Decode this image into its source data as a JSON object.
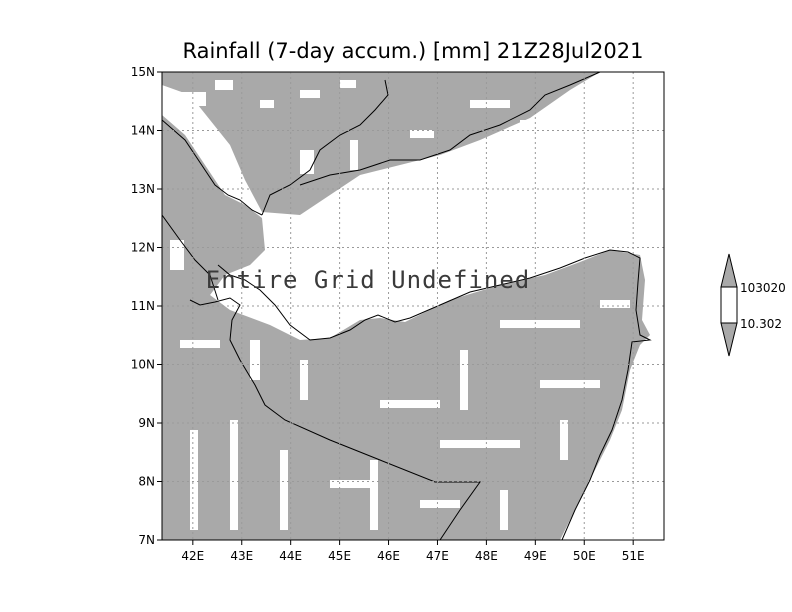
{
  "map": {
    "title": "Rainfall (7-day accum.) [mm] 21Z28Jul2021",
    "overlay_text": "Entire Grid Undefined",
    "lon_range": [
      41.37,
      51.63
    ],
    "lat_range": [
      7,
      15
    ],
    "lon_ticks": [
      "42E",
      "43E",
      "44E",
      "45E",
      "46E",
      "47E",
      "48E",
      "49E",
      "50E",
      "51E"
    ],
    "lat_ticks": [
      "15N",
      "14N",
      "13N",
      "12N",
      "11N",
      "10N",
      "9N",
      "8N",
      "7N"
    ],
    "colors": {
      "land": "#a9a9a9",
      "sea": "#ffffff",
      "coast": "#000000",
      "grid": "#9a9a9a"
    }
  },
  "colorbar": {
    "labels": [
      "103020",
      "10.302"
    ],
    "colors": [
      "#a9a9a9",
      "#ffffff",
      "#a9a9a9"
    ]
  }
}
